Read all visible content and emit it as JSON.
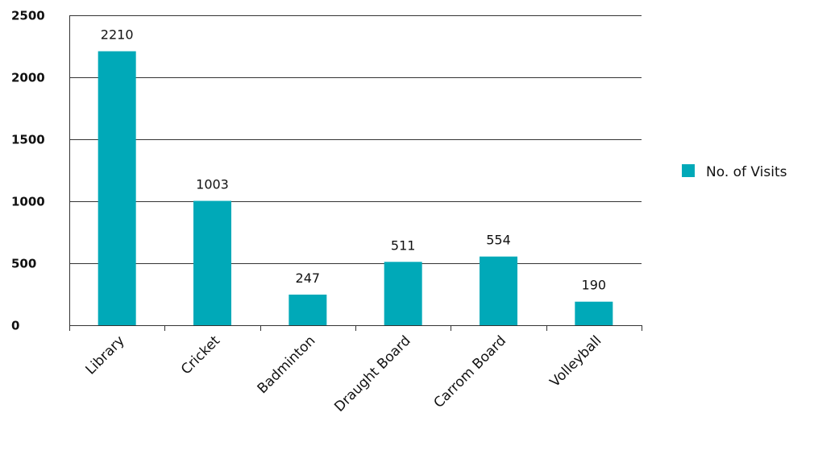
{
  "chart_data": {
    "type": "bar",
    "title": "",
    "xlabel": "",
    "ylabel": "",
    "categories": [
      "Library",
      "Cricket",
      "Badminton",
      "Draught Board",
      "Carrom Board",
      "Volleyball"
    ],
    "series": [
      {
        "name": "No. of Visits",
        "values": [
          2210,
          1003,
          247,
          511,
          554,
          190
        ],
        "color": "#00A9B8"
      }
    ],
    "ylim": [
      0,
      2500
    ],
    "yticks": [
      0,
      500,
      1000,
      1500,
      2000,
      2500
    ],
    "grid": true,
    "legend_position": "right",
    "data_labels": true
  }
}
